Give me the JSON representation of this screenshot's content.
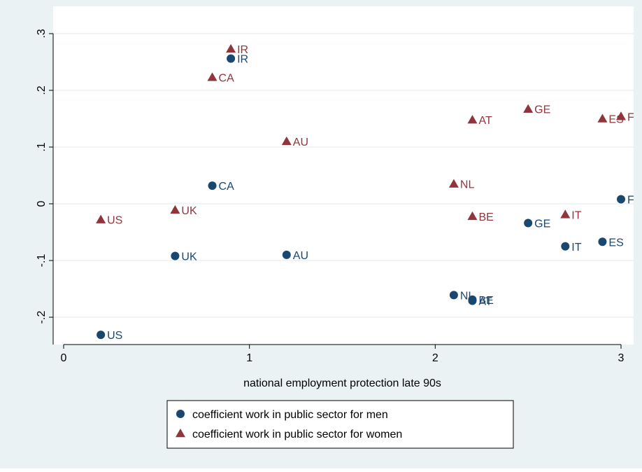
{
  "chart_data": {
    "type": "scatter",
    "title": "",
    "xlabel": "national employment protection late 90s",
    "ylabel": "",
    "xlim": [
      -0.05,
      3.05
    ],
    "ylim": [
      -0.245,
      0.31
    ],
    "x_ticks": [
      0,
      1,
      2,
      3
    ],
    "x_tick_labels": [
      "0",
      "1",
      "2",
      "3"
    ],
    "y_ticks": [
      -0.2,
      -0.1,
      0,
      0.1,
      0.2,
      0.3
    ],
    "y_tick_labels": [
      "-.2",
      "-.1",
      "0",
      ".1",
      ".2",
      ".3"
    ],
    "grid": "horizontal",
    "legend_position": "bottom",
    "colors": {
      "plot_bg": "#ffffff",
      "outer_bg": "#eaf2f3",
      "grid": "#eaf2f3",
      "axis": "#000000",
      "men": "#1a476f",
      "women": "#90353b"
    },
    "series": [
      {
        "name": "coefficient work in public sector for men",
        "marker": "circle",
        "color": "#1a476f",
        "points": [
          {
            "label": "US",
            "x": 0.2,
            "y": -0.231
          },
          {
            "label": "UK",
            "x": 0.6,
            "y": -0.092
          },
          {
            "label": "CA",
            "x": 0.8,
            "y": 0.032
          },
          {
            "label": "IR",
            "x": 0.9,
            "y": 0.256
          },
          {
            "label": "AU",
            "x": 1.2,
            "y": -0.09
          },
          {
            "label": "NL",
            "x": 2.1,
            "y": -0.161
          },
          {
            "label": "BE",
            "x": 2.2,
            "y": -0.169
          },
          {
            "label": "AT",
            "x": 2.2,
            "y": -0.171
          },
          {
            "label": "GE",
            "x": 2.5,
            "y": -0.034
          },
          {
            "label": "IT",
            "x": 2.7,
            "y": -0.075
          },
          {
            "label": "ES",
            "x": 2.9,
            "y": -0.067
          },
          {
            "label": "FR",
            "x": 3.0,
            "y": 0.008
          }
        ]
      },
      {
        "name": "coefficient work in public sector for women",
        "marker": "triangle",
        "color": "#90353b",
        "points": [
          {
            "label": "US",
            "x": 0.2,
            "y": -0.028
          },
          {
            "label": "UK",
            "x": 0.6,
            "y": -0.011
          },
          {
            "label": "CA",
            "x": 0.8,
            "y": 0.223
          },
          {
            "label": "IR",
            "x": 0.9,
            "y": 0.273
          },
          {
            "label": "AU",
            "x": 1.2,
            "y": 0.11
          },
          {
            "label": "NL",
            "x": 2.1,
            "y": 0.035
          },
          {
            "label": "BE",
            "x": 2.2,
            "y": -0.022
          },
          {
            "label": "AT",
            "x": 2.2,
            "y": 0.148
          },
          {
            "label": "GE",
            "x": 2.5,
            "y": 0.167
          },
          {
            "label": "IT",
            "x": 2.7,
            "y": -0.019
          },
          {
            "label": "ES",
            "x": 2.9,
            "y": 0.15
          },
          {
            "label": "FR",
            "x": 3.0,
            "y": 0.154
          }
        ]
      }
    ]
  }
}
